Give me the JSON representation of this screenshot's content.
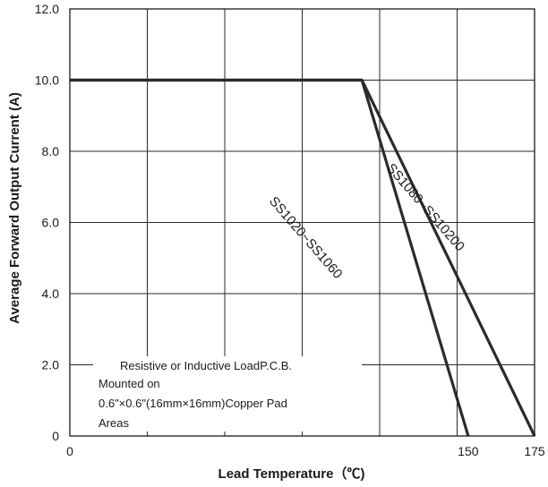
{
  "chart_data": {
    "type": "line",
    "xlabel": "Lead Temperature（℃)",
    "ylabel": "Average Forward Output Current (A)",
    "xlim": [
      0,
      175
    ],
    "ylim": [
      0,
      12
    ],
    "x_tick_labels": [
      "0",
      "150",
      "175"
    ],
    "y_tick_labels": [
      "0",
      "2.0",
      "4.0",
      "6.0",
      "8.0",
      "10.0",
      "12.0"
    ],
    "grid": true,
    "line_color": "#2b2b2b",
    "series": [
      {
        "name": "SS1020~SS1060",
        "points": [
          [
            0,
            10
          ],
          [
            110,
            10
          ],
          [
            150,
            0
          ]
        ]
      },
      {
        "name": "SS1080~SS10200",
        "points": [
          [
            0,
            10
          ],
          [
            110,
            10
          ],
          [
            175,
            0
          ]
        ]
      }
    ],
    "annotation_lines": [
      "Resistive or Inductive LoadP.C.B.",
      "Mounted on",
      "0.6\"×0.6\"(16mm×16mm)Copper Pad",
      "Areas"
    ]
  }
}
